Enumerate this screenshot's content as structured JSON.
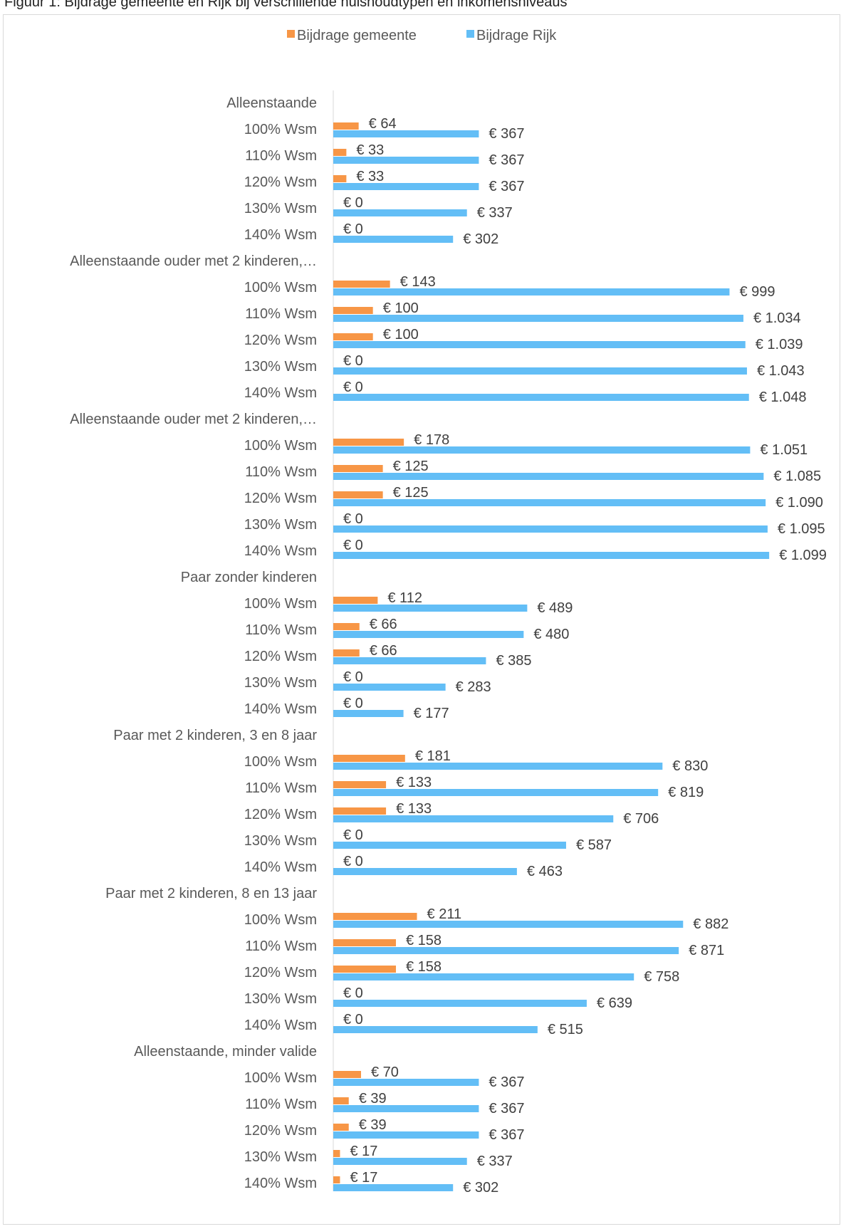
{
  "caption_fragment": "Figuur 1: Bijdrage gemeente en Rijk bij verschillende huishoudtypen en inkomensniveaus",
  "chart_data": {
    "type": "bar",
    "orientation": "horizontal",
    "title": "",
    "xlabel": "",
    "ylabel": "",
    "currency_prefix": "€ ",
    "legend_position": "top-center",
    "gridlines": false,
    "series": [
      {
        "name": "Bijdrage gemeente",
        "color": "#F79646"
      },
      {
        "name": "Bijdrage Rijk",
        "color": "#63BEF6"
      }
    ],
    "groups": [
      {
        "label": "Alleenstaande",
        "rows": [
          {
            "label": "100% Wsm",
            "gemeente": 64,
            "rijk": 367,
            "gemeente_text": "€ 64",
            "rijk_text": "€ 367"
          },
          {
            "label": "110% Wsm",
            "gemeente": 33,
            "rijk": 367,
            "gemeente_text": "€ 33",
            "rijk_text": "€ 367"
          },
          {
            "label": "120% Wsm",
            "gemeente": 33,
            "rijk": 367,
            "gemeente_text": "€ 33",
            "rijk_text": "€ 367"
          },
          {
            "label": "130% Wsm",
            "gemeente": 0,
            "rijk": 337,
            "gemeente_text": "€ 0",
            "rijk_text": "€ 337"
          },
          {
            "label": "140% Wsm",
            "gemeente": 0,
            "rijk": 302,
            "gemeente_text": "€ 0",
            "rijk_text": "€ 302"
          }
        ]
      },
      {
        "label": "Alleenstaande ouder met 2 kinderen,…",
        "rows": [
          {
            "label": "100% Wsm",
            "gemeente": 143,
            "rijk": 999,
            "gemeente_text": "€ 143",
            "rijk_text": "€ 999"
          },
          {
            "label": "110% Wsm",
            "gemeente": 100,
            "rijk": 1034,
            "gemeente_text": "€ 100",
            "rijk_text": "€ 1.034"
          },
          {
            "label": "120% Wsm",
            "gemeente": 100,
            "rijk": 1039,
            "gemeente_text": "€ 100",
            "rijk_text": "€ 1.039"
          },
          {
            "label": "130% Wsm",
            "gemeente": 0,
            "rijk": 1043,
            "gemeente_text": "€ 0",
            "rijk_text": "€ 1.043"
          },
          {
            "label": "140% Wsm",
            "gemeente": 0,
            "rijk": 1048,
            "gemeente_text": "€ 0",
            "rijk_text": "€ 1.048"
          }
        ]
      },
      {
        "label": "Alleenstaande ouder met 2 kinderen,…",
        "rows": [
          {
            "label": "100% Wsm",
            "gemeente": 178,
            "rijk": 1051,
            "gemeente_text": "€ 178",
            "rijk_text": "€ 1.051"
          },
          {
            "label": "110% Wsm",
            "gemeente": 125,
            "rijk": 1085,
            "gemeente_text": "€ 125",
            "rijk_text": "€ 1.085"
          },
          {
            "label": "120% Wsm",
            "gemeente": 125,
            "rijk": 1090,
            "gemeente_text": "€ 125",
            "rijk_text": "€ 1.090"
          },
          {
            "label": "130% Wsm",
            "gemeente": 0,
            "rijk": 1095,
            "gemeente_text": "€ 0",
            "rijk_text": "€ 1.095"
          },
          {
            "label": "140% Wsm",
            "gemeente": 0,
            "rijk": 1099,
            "gemeente_text": "€ 0",
            "rijk_text": "€ 1.099"
          }
        ]
      },
      {
        "label": "Paar zonder kinderen",
        "rows": [
          {
            "label": "100% Wsm",
            "gemeente": 112,
            "rijk": 489,
            "gemeente_text": "€ 112",
            "rijk_text": "€ 489"
          },
          {
            "label": "110% Wsm",
            "gemeente": 66,
            "rijk": 480,
            "gemeente_text": "€ 66",
            "rijk_text": "€ 480"
          },
          {
            "label": "120% Wsm",
            "gemeente": 66,
            "rijk": 385,
            "gemeente_text": "€ 66",
            "rijk_text": "€ 385"
          },
          {
            "label": "130% Wsm",
            "gemeente": 0,
            "rijk": 283,
            "gemeente_text": "€ 0",
            "rijk_text": "€ 283"
          },
          {
            "label": "140% Wsm",
            "gemeente": 0,
            "rijk": 177,
            "gemeente_text": "€ 0",
            "rijk_text": "€ 177"
          }
        ]
      },
      {
        "label": "Paar met 2 kinderen, 3 en 8 jaar",
        "rows": [
          {
            "label": "100% Wsm",
            "gemeente": 181,
            "rijk": 830,
            "gemeente_text": "€ 181",
            "rijk_text": "€ 830"
          },
          {
            "label": "110% Wsm",
            "gemeente": 133,
            "rijk": 819,
            "gemeente_text": "€ 133",
            "rijk_text": "€ 819"
          },
          {
            "label": "120% Wsm",
            "gemeente": 133,
            "rijk": 706,
            "gemeente_text": "€ 133",
            "rijk_text": "€ 706"
          },
          {
            "label": "130% Wsm",
            "gemeente": 0,
            "rijk": 587,
            "gemeente_text": "€ 0",
            "rijk_text": "€ 587"
          },
          {
            "label": "140% Wsm",
            "gemeente": 0,
            "rijk": 463,
            "gemeente_text": "€ 0",
            "rijk_text": "€ 463"
          }
        ]
      },
      {
        "label": "Paar met 2 kinderen, 8 en 13 jaar",
        "rows": [
          {
            "label": "100% Wsm",
            "gemeente": 211,
            "rijk": 882,
            "gemeente_text": "€ 211",
            "rijk_text": "€ 882"
          },
          {
            "label": "110% Wsm",
            "gemeente": 158,
            "rijk": 871,
            "gemeente_text": "€ 158",
            "rijk_text": "€ 871"
          },
          {
            "label": "120% Wsm",
            "gemeente": 158,
            "rijk": 758,
            "gemeente_text": "€ 158",
            "rijk_text": "€ 758"
          },
          {
            "label": "130% Wsm",
            "gemeente": 0,
            "rijk": 639,
            "gemeente_text": "€ 0",
            "rijk_text": "€ 639"
          },
          {
            "label": "140% Wsm",
            "gemeente": 0,
            "rijk": 515,
            "gemeente_text": "€ 0",
            "rijk_text": "€ 515"
          }
        ]
      },
      {
        "label": "Alleenstaande, minder valide",
        "rows": [
          {
            "label": "100% Wsm",
            "gemeente": 70,
            "rijk": 367,
            "gemeente_text": "€ 70",
            "rijk_text": "€ 367"
          },
          {
            "label": "110% Wsm",
            "gemeente": 39,
            "rijk": 367,
            "gemeente_text": "€ 39",
            "rijk_text": "€ 367"
          },
          {
            "label": "120% Wsm",
            "gemeente": 39,
            "rijk": 367,
            "gemeente_text": "€ 39",
            "rijk_text": "€ 367"
          },
          {
            "label": "130% Wsm",
            "gemeente": 17,
            "rijk": 337,
            "gemeente_text": "€ 17",
            "rijk_text": "€ 337"
          },
          {
            "label": "140% Wsm",
            "gemeente": 17,
            "rijk": 302,
            "gemeente_text": "€ 17",
            "rijk_text": "€ 302"
          }
        ]
      }
    ]
  }
}
